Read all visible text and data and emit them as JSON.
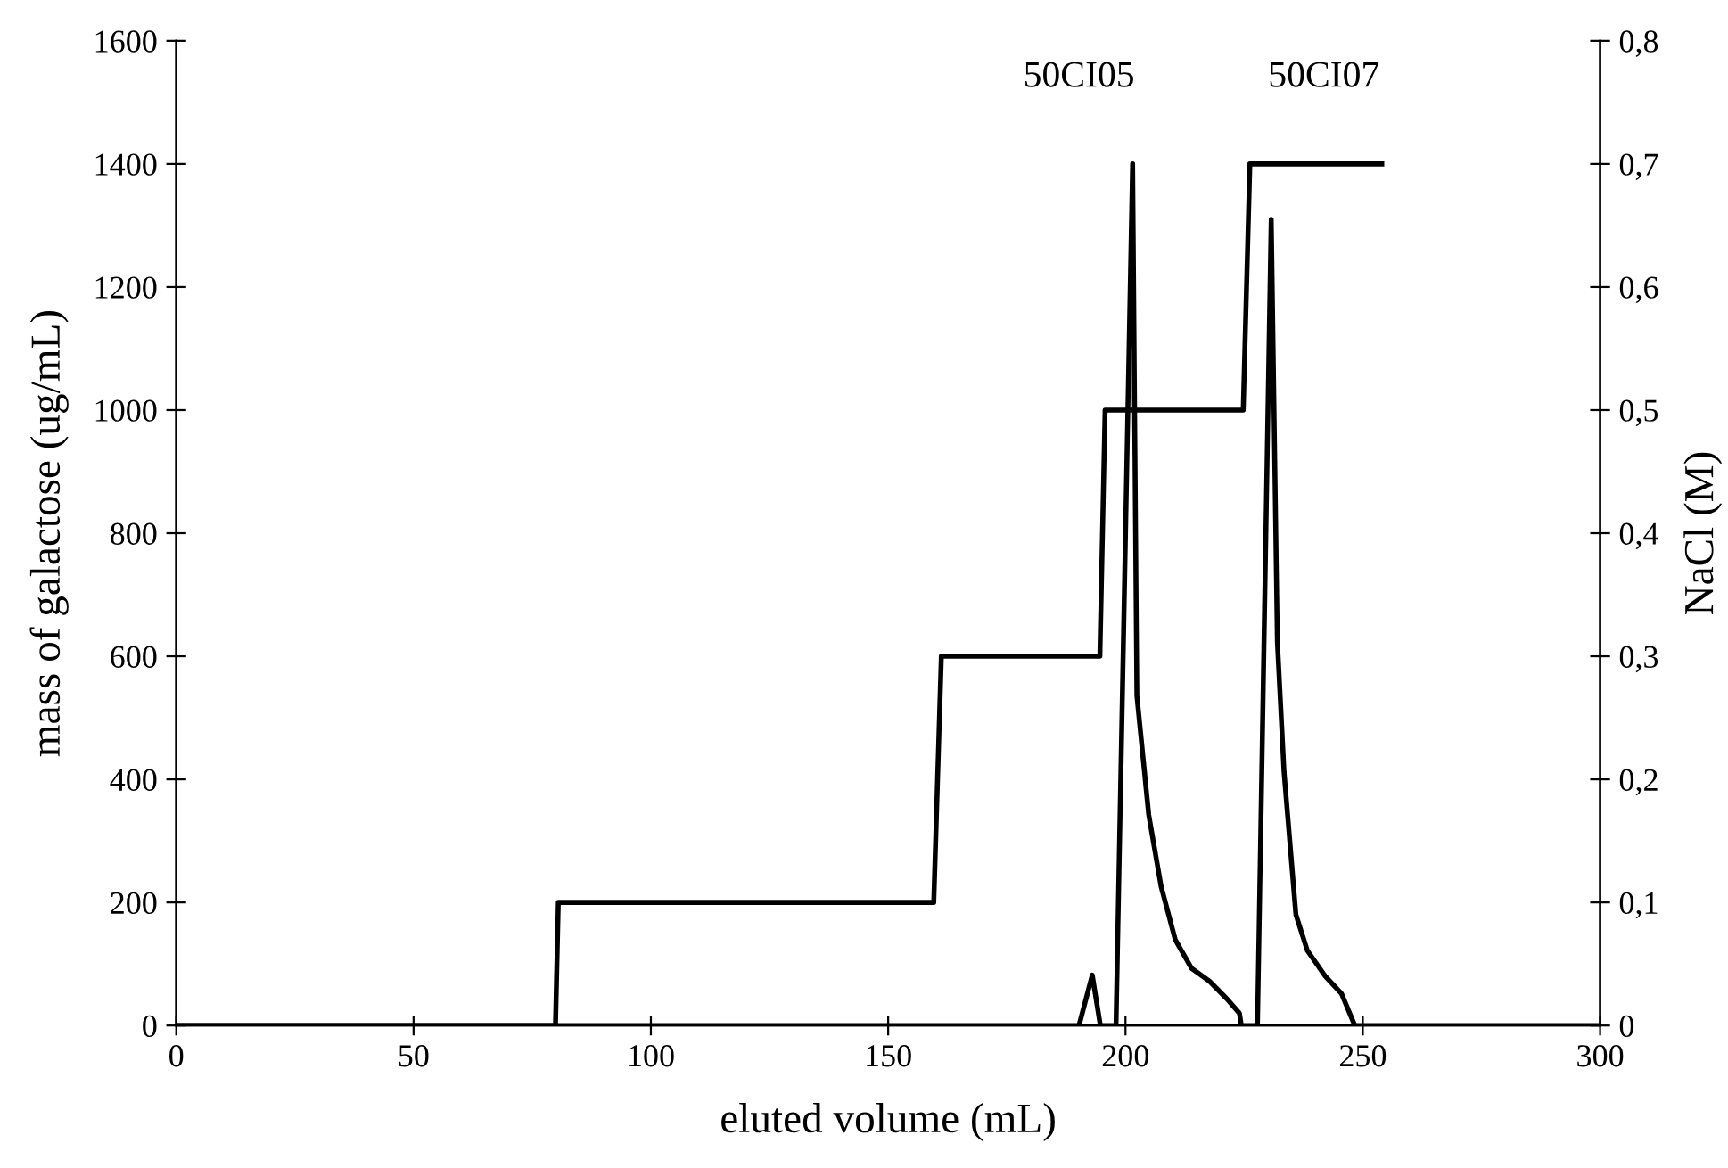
{
  "chart_data": {
    "type": "line",
    "xlabel": "eluted volume (mL)",
    "ylabel": "mass of galactose (ug/mL)",
    "y2label": "NaCl (M)",
    "xlim": [
      0,
      300
    ],
    "xticks": [
      0,
      50,
      100,
      150,
      200,
      250,
      300
    ],
    "ylim": [
      0,
      1600
    ],
    "yticks": [
      0,
      200,
      400,
      600,
      800,
      1000,
      1200,
      1400,
      1600
    ],
    "y2lim": [
      0,
      0.8
    ],
    "y2ticks": [
      {
        "value": 0,
        "label": "0"
      },
      {
        "value": 0.1,
        "label": "0,1"
      },
      {
        "value": 0.2,
        "label": "0,2"
      },
      {
        "value": 0.3,
        "label": "0,3"
      },
      {
        "value": 0.4,
        "label": "0,4"
      },
      {
        "value": 0.5,
        "label": "0,5"
      },
      {
        "value": 0.6,
        "label": "0,6"
      },
      {
        "value": 0.7,
        "label": "0,7"
      },
      {
        "value": 0.8,
        "label": "0,8"
      }
    ],
    "series": [
      {
        "color": "#000000",
        "x": [
          0,
          190.2,
          193,
          194.7,
          198,
          201.5,
          202.4,
          204.9,
          207.5,
          210.5,
          213.9,
          217.7,
          221.4,
          224,
          224.4,
          227.8,
          230.7,
          232,
          233.4,
          235.9,
          238.3,
          242,
          245.5,
          248.3,
          300
        ],
        "values": [
          0,
          0,
          82,
          0,
          0,
          1400,
          536,
          342,
          226,
          139,
          93,
          72,
          43,
          20,
          0,
          0,
          1310,
          623,
          412,
          180,
          122,
          81,
          52,
          0,
          0
        ]
      },
      {
        "color": "#000000",
        "axis": "y2",
        "x": [
          0,
          79.9,
          80.5,
          159.6,
          161.2,
          194.6,
          195.7,
          224.8,
          226.2,
          254
        ],
        "values": [
          0,
          0,
          0.1,
          0.1,
          0.3,
          0.3,
          0.5,
          0.5,
          0.7,
          0.7
        ]
      }
    ],
    "annotations": [
      "50CI05",
      "50CI07"
    ],
    "grid": false,
    "legend": false
  }
}
